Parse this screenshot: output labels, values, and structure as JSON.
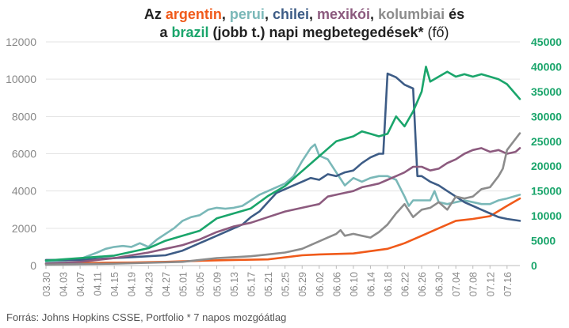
{
  "chart_data": {
    "type": "line",
    "title": {
      "line1": [
        {
          "text": "Az ",
          "series": null
        },
        {
          "text": "argentin",
          "series": "argentin"
        },
        {
          "text": ", ",
          "series": null
        },
        {
          "text": "perui",
          "series": "perui"
        },
        {
          "text": ", ",
          "series": null
        },
        {
          "text": "chilei",
          "series": "chilei"
        },
        {
          "text": ", ",
          "series": null
        },
        {
          "text": "mexikói",
          "series": "mexikoi"
        },
        {
          "text": ", ",
          "series": null
        },
        {
          "text": "kolumbiai",
          "series": "kolumbiai"
        },
        {
          "text": " és",
          "series": null
        }
      ],
      "line2": [
        {
          "text": "a ",
          "series": null
        },
        {
          "text": "brazil",
          "series": "brazil"
        },
        {
          "text": " (jobb t.) napi megbetegedések*",
          "series": null
        },
        {
          "text": " (fő)",
          "series": "normal"
        }
      ]
    },
    "footer": "Forrás: Johns Hopkins CSSE, Portfolio   * 7 napos mozgóátlag",
    "x_tick_labels": [
      "03.30",
      "04.03",
      "04.07",
      "04.11",
      "04.15",
      "04.19",
      "04.23",
      "04.27",
      "05.01",
      "05.05",
      "05.09",
      "05.13",
      "05.17",
      "05.21",
      "05.25",
      "05.29",
      "06.02",
      "06.06",
      "06.10",
      "06.14",
      "06.18",
      "06.22",
      "06.26",
      "06.30",
      "07.04",
      "07.08",
      "07.12",
      "07.16"
    ],
    "y_left": {
      "min": 0,
      "max": 12000,
      "ticks": [
        0,
        2000,
        4000,
        6000,
        8000,
        10000,
        12000
      ],
      "color": "#888888"
    },
    "y_right": {
      "min": 0,
      "max": 45000,
      "ticks": [
        0,
        5000,
        10000,
        15000,
        20000,
        25000,
        30000,
        35000,
        40000,
        45000
      ],
      "color": "#1aa56b"
    },
    "x_range": [
      0,
      111
    ],
    "grid": "horizontal",
    "series": [
      {
        "key": "argentin",
        "axis": "left",
        "color": "#f05a1a",
        "points": [
          [
            0,
            100
          ],
          [
            12,
            150
          ],
          [
            20,
            160
          ],
          [
            28,
            200
          ],
          [
            36,
            260
          ],
          [
            44,
            300
          ],
          [
            52,
            330
          ],
          [
            60,
            550
          ],
          [
            64,
            600
          ],
          [
            72,
            650
          ],
          [
            80,
            900
          ],
          [
            84,
            1200
          ],
          [
            88,
            1600
          ],
          [
            92,
            2000
          ],
          [
            96,
            2400
          ],
          [
            100,
            2500
          ],
          [
            104,
            2650
          ],
          [
            108,
            3200
          ],
          [
            111,
            3600
          ]
        ]
      },
      {
        "key": "perui",
        "axis": "left",
        "color": "#7ab8b8",
        "points": [
          [
            0,
            200
          ],
          [
            4,
            250
          ],
          [
            8,
            350
          ],
          [
            12,
            700
          ],
          [
            14,
            900
          ],
          [
            16,
            1000
          ],
          [
            18,
            1050
          ],
          [
            20,
            1000
          ],
          [
            22,
            1200
          ],
          [
            24,
            1000
          ],
          [
            26,
            1400
          ],
          [
            28,
            1700
          ],
          [
            30,
            2000
          ],
          [
            32,
            2400
          ],
          [
            34,
            2600
          ],
          [
            36,
            2700
          ],
          [
            38,
            3000
          ],
          [
            40,
            3100
          ],
          [
            42,
            3050
          ],
          [
            44,
            3100
          ],
          [
            46,
            3200
          ],
          [
            48,
            3500
          ],
          [
            50,
            3800
          ],
          [
            52,
            4000
          ],
          [
            54,
            4200
          ],
          [
            56,
            4400
          ],
          [
            58,
            4800
          ],
          [
            60,
            5600
          ],
          [
            62,
            6300
          ],
          [
            63,
            6500
          ],
          [
            64,
            5900
          ],
          [
            66,
            5700
          ],
          [
            68,
            5000
          ],
          [
            70,
            4300
          ],
          [
            72,
            4700
          ],
          [
            74,
            4500
          ],
          [
            76,
            4700
          ],
          [
            78,
            4800
          ],
          [
            80,
            4800
          ],
          [
            82,
            4600
          ],
          [
            84,
            3700
          ],
          [
            85,
            3200
          ],
          [
            86,
            3500
          ],
          [
            88,
            3500
          ],
          [
            90,
            3500
          ],
          [
            91,
            4000
          ],
          [
            92,
            3400
          ],
          [
            94,
            3300
          ],
          [
            96,
            3400
          ],
          [
            98,
            3500
          ],
          [
            100,
            3400
          ],
          [
            102,
            3300
          ],
          [
            104,
            3300
          ],
          [
            106,
            3500
          ],
          [
            108,
            3600
          ],
          [
            111,
            3800
          ]
        ]
      },
      {
        "key": "chilei",
        "axis": "left",
        "color": "#3d5c86",
        "points": [
          [
            0,
            300
          ],
          [
            4,
            300
          ],
          [
            8,
            300
          ],
          [
            12,
            350
          ],
          [
            16,
            400
          ],
          [
            20,
            450
          ],
          [
            24,
            500
          ],
          [
            28,
            550
          ],
          [
            32,
            800
          ],
          [
            36,
            1200
          ],
          [
            40,
            1600
          ],
          [
            44,
            2000
          ],
          [
            46,
            2200
          ],
          [
            48,
            2600
          ],
          [
            50,
            2900
          ],
          [
            52,
            3400
          ],
          [
            54,
            3900
          ],
          [
            56,
            4100
          ],
          [
            58,
            4300
          ],
          [
            60,
            4500
          ],
          [
            62,
            4700
          ],
          [
            64,
            4600
          ],
          [
            66,
            4900
          ],
          [
            68,
            4800
          ],
          [
            70,
            5000
          ],
          [
            72,
            5100
          ],
          [
            74,
            5500
          ],
          [
            76,
            5800
          ],
          [
            78,
            6000
          ],
          [
            79,
            6000
          ],
          [
            80,
            10300
          ],
          [
            82,
            10100
          ],
          [
            84,
            9700
          ],
          [
            86,
            9500
          ],
          [
            87,
            4800
          ],
          [
            88,
            4800
          ],
          [
            90,
            4500
          ],
          [
            92,
            4300
          ],
          [
            94,
            4000
          ],
          [
            96,
            3700
          ],
          [
            98,
            3400
          ],
          [
            100,
            3200
          ],
          [
            102,
            3000
          ],
          [
            104,
            2800
          ],
          [
            106,
            2600
          ],
          [
            108,
            2500
          ],
          [
            111,
            2400
          ]
        ]
      },
      {
        "key": "mexikoi",
        "axis": "left",
        "color": "#8c5a7e",
        "points": [
          [
            0,
            100
          ],
          [
            4,
            150
          ],
          [
            8,
            200
          ],
          [
            12,
            300
          ],
          [
            16,
            400
          ],
          [
            20,
            550
          ],
          [
            24,
            700
          ],
          [
            28,
            900
          ],
          [
            32,
            1100
          ],
          [
            36,
            1400
          ],
          [
            40,
            1800
          ],
          [
            44,
            2100
          ],
          [
            48,
            2300
          ],
          [
            52,
            2600
          ],
          [
            56,
            2900
          ],
          [
            60,
            3100
          ],
          [
            62,
            3200
          ],
          [
            64,
            3300
          ],
          [
            66,
            3700
          ],
          [
            68,
            3800
          ],
          [
            70,
            3900
          ],
          [
            72,
            4000
          ],
          [
            74,
            4200
          ],
          [
            76,
            4300
          ],
          [
            78,
            4400
          ],
          [
            80,
            4600
          ],
          [
            82,
            4800
          ],
          [
            84,
            5000
          ],
          [
            86,
            5300
          ],
          [
            88,
            5300
          ],
          [
            90,
            5100
          ],
          [
            92,
            5200
          ],
          [
            94,
            5500
          ],
          [
            96,
            5700
          ],
          [
            98,
            6000
          ],
          [
            100,
            6200
          ],
          [
            102,
            6300
          ],
          [
            104,
            6100
          ],
          [
            106,
            6200
          ],
          [
            108,
            6000
          ],
          [
            110,
            6100
          ],
          [
            111,
            6300
          ]
        ]
      },
      {
        "key": "kolumbiai",
        "axis": "left",
        "color": "#8c8c8c",
        "points": [
          [
            0,
            50
          ],
          [
            8,
            80
          ],
          [
            16,
            100
          ],
          [
            24,
            150
          ],
          [
            32,
            200
          ],
          [
            36,
            300
          ],
          [
            40,
            400
          ],
          [
            44,
            450
          ],
          [
            48,
            500
          ],
          [
            52,
            600
          ],
          [
            56,
            700
          ],
          [
            60,
            900
          ],
          [
            62,
            1100
          ],
          [
            64,
            1300
          ],
          [
            66,
            1500
          ],
          [
            68,
            1700
          ],
          [
            69,
            1900
          ],
          [
            70,
            1600
          ],
          [
            72,
            1700
          ],
          [
            74,
            1600
          ],
          [
            76,
            1500
          ],
          [
            78,
            1800
          ],
          [
            80,
            2200
          ],
          [
            82,
            2800
          ],
          [
            84,
            3300
          ],
          [
            86,
            2600
          ],
          [
            88,
            3000
          ],
          [
            90,
            3100
          ],
          [
            92,
            3400
          ],
          [
            94,
            3000
          ],
          [
            96,
            3700
          ],
          [
            98,
            3600
          ],
          [
            100,
            3700
          ],
          [
            102,
            4100
          ],
          [
            104,
            4200
          ],
          [
            106,
            4800
          ],
          [
            107,
            5200
          ],
          [
            108,
            6200
          ],
          [
            110,
            6800
          ],
          [
            111,
            7100
          ]
        ]
      },
      {
        "key": "brazil",
        "axis": "right",
        "color": "#1aa56b",
        "points": [
          [
            0,
            1000
          ],
          [
            8,
            1500
          ],
          [
            16,
            2000
          ],
          [
            24,
            3500
          ],
          [
            28,
            5000
          ],
          [
            32,
            6000
          ],
          [
            36,
            7000
          ],
          [
            40,
            9500
          ],
          [
            44,
            10500
          ],
          [
            48,
            11500
          ],
          [
            52,
            14000
          ],
          [
            56,
            16000
          ],
          [
            60,
            19000
          ],
          [
            64,
            22000
          ],
          [
            66,
            23500
          ],
          [
            68,
            25000
          ],
          [
            70,
            25500
          ],
          [
            72,
            26000
          ],
          [
            74,
            27000
          ],
          [
            76,
            26500
          ],
          [
            78,
            26000
          ],
          [
            80,
            26500
          ],
          [
            82,
            30000
          ],
          [
            84,
            28000
          ],
          [
            86,
            31000
          ],
          [
            88,
            35000
          ],
          [
            89,
            40000
          ],
          [
            90,
            37000
          ],
          [
            92,
            38000
          ],
          [
            94,
            39000
          ],
          [
            96,
            38000
          ],
          [
            98,
            38500
          ],
          [
            100,
            38000
          ],
          [
            102,
            38500
          ],
          [
            104,
            38000
          ],
          [
            106,
            37500
          ],
          [
            108,
            36500
          ],
          [
            111,
            33500
          ]
        ]
      }
    ]
  }
}
